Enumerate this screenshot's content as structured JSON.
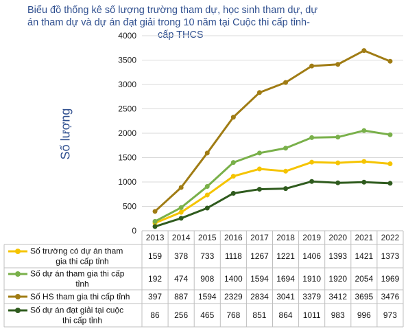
{
  "chart_data": {
    "type": "line",
    "title_lines": [
      "Biểu đồ thống kê số lượng trường tham dự, học sinh tham dự, dự",
      "án tham dự và dự án đạt giải trong 10 năm tại Cuộc thi cấp tỉnh-",
      "cấp THCS"
    ],
    "ylabel": "Số lượng",
    "xlabel": "",
    "ylim": [
      0,
      4000
    ],
    "yticks": [
      0,
      500,
      1000,
      1500,
      2000,
      2500,
      3000,
      3500,
      4000
    ],
    "grid": true,
    "legend": "table-below",
    "categories": [
      "2013",
      "2014",
      "2015",
      "2016",
      "2017",
      "2018",
      "2019",
      "2020",
      "2021",
      "2022"
    ],
    "series": [
      {
        "name_lines": [
          "Số trường có dự án tham",
          "gia thi cấp tỉnh"
        ],
        "color": "#f5c400",
        "values": [
          159,
          378,
          733,
          1118,
          1267,
          1221,
          1406,
          1393,
          1421,
          1373
        ]
      },
      {
        "name_lines": [
          "Số dự án tham gia thi cấp",
          "tỉnh"
        ],
        "color": "#79b04a",
        "values": [
          192,
          474,
          908,
          1400,
          1594,
          1694,
          1910,
          1920,
          2054,
          1969
        ]
      },
      {
        "name_lines": [
          "Số HS tham gia thi cấp tỉnh"
        ],
        "color": "#a07c14",
        "values": [
          397,
          887,
          1594,
          2329,
          2834,
          3041,
          3379,
          3412,
          3695,
          3476
        ]
      },
      {
        "name_lines": [
          "Số dự án đạt giải tại cuộc",
          "thi cấp tỉnh"
        ],
        "color": "#2f5b1e",
        "values": [
          86,
          256,
          465,
          768,
          851,
          864,
          1011,
          983,
          996,
          973
        ]
      }
    ]
  }
}
